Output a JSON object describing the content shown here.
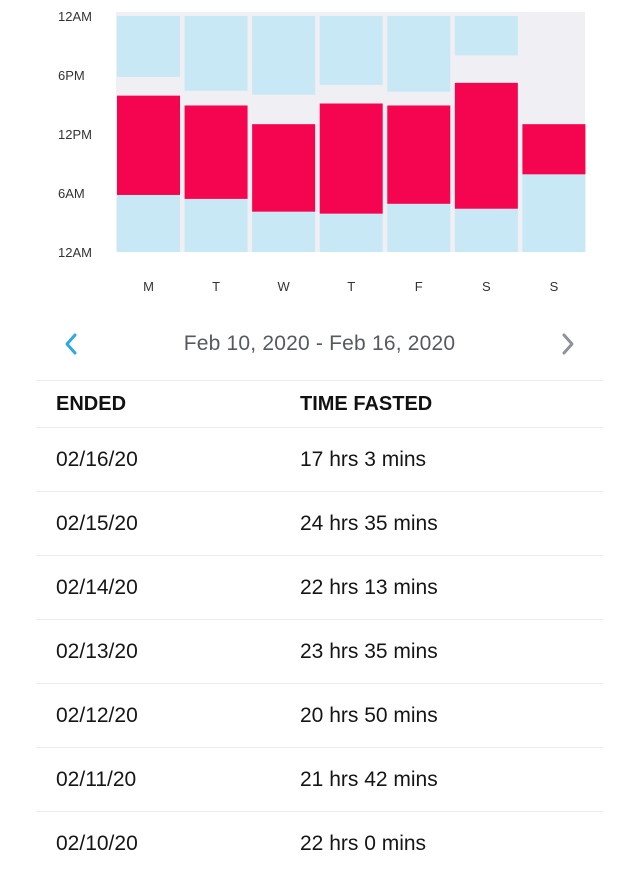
{
  "chart_data": {
    "type": "bar",
    "y_tick_labels": [
      "12AM",
      "6PM",
      "12PM",
      "6AM",
      "12AM"
    ],
    "categories": [
      "M",
      "T",
      "W",
      "T",
      "F",
      "S",
      "S"
    ],
    "series": [
      {
        "values": [
          {
            "start_h": 5.8,
            "end_h": 15.9
          },
          {
            "start_h": 5.4,
            "end_h": 14.9
          },
          {
            "start_h": 4.1,
            "end_h": 13.0
          },
          {
            "start_h": 3.9,
            "end_h": 15.1
          },
          {
            "start_h": 4.9,
            "end_h": 14.9
          },
          {
            "start_h": 4.4,
            "end_h": 17.2
          },
          {
            "start_h": 7.9,
            "end_h": 13.0
          }
        ]
      },
      {
        "values": [
          {
            "start_h": 0,
            "end_h": 5.8
          },
          {
            "start_h": 0,
            "end_h": 5.4
          },
          {
            "start_h": 0,
            "end_h": 4.1
          },
          {
            "start_h": 0,
            "end_h": 3.9
          },
          {
            "start_h": 0,
            "end_h": 4.9
          },
          {
            "start_h": 0,
            "end_h": 4.4
          },
          {
            "start_h": 0,
            "end_h": 7.9
          }
        ]
      },
      {
        "values": [
          {
            "start_h": 17.8,
            "end_h": 24
          },
          {
            "start_h": 16.4,
            "end_h": 24
          },
          {
            "start_h": 16.0,
            "end_h": 24
          },
          {
            "start_h": 17.0,
            "end_h": 24
          },
          {
            "start_h": 16.3,
            "end_h": 24
          },
          {
            "start_h": 20.0,
            "end_h": 24
          },
          null
        ]
      }
    ],
    "ylim": [
      0,
      24
    ],
    "grid": false
  },
  "colors": {
    "fasting_bar": "#f5054f",
    "background_bar": "#c9e8f6",
    "plot_background": "#efeff4",
    "accent": "#2eaadc",
    "chevron_disabled": "#8e9398"
  },
  "range": {
    "label": "Feb 10, 2020 - Feb 16, 2020",
    "prev_icon": "chevron-left-icon",
    "next_icon": "chevron-right-icon"
  },
  "table": {
    "headers": [
      "ENDED",
      "TIME FASTED"
    ],
    "rows": [
      {
        "ended": "02/16/20",
        "time_fasted": "17 hrs 3 mins"
      },
      {
        "ended": "02/15/20",
        "time_fasted": "24 hrs 35 mins"
      },
      {
        "ended": "02/14/20",
        "time_fasted": "22 hrs 13 mins"
      },
      {
        "ended": "02/13/20",
        "time_fasted": "23 hrs 35 mins"
      },
      {
        "ended": "02/12/20",
        "time_fasted": "20 hrs 50 mins"
      },
      {
        "ended": "02/11/20",
        "time_fasted": "21 hrs 42 mins"
      },
      {
        "ended": "02/10/20",
        "time_fasted": "22 hrs 0 mins"
      }
    ]
  }
}
